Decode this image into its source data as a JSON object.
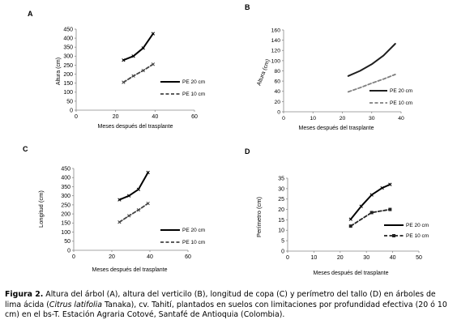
{
  "chart_data": [
    {
      "type": "line",
      "panel_label": "A",
      "xlabel": "Meses después del trasplante",
      "ylabel": "Altura (cm)",
      "xlim": [
        0,
        60
      ],
      "xticks": [
        0,
        20,
        40,
        60
      ],
      "ylim": [
        0,
        450
      ],
      "yticks": [
        0,
        50,
        100,
        150,
        200,
        250,
        300,
        350,
        400,
        450
      ],
      "legend_position": "right",
      "series": [
        {
          "name": "PE 20 cm",
          "color": "#000000",
          "style": "solid",
          "marker": "x",
          "x": [
            24,
            29,
            34,
            39
          ],
          "y": [
            278,
            300,
            345,
            425
          ]
        },
        {
          "name": "PE 10 cm",
          "color": "#444444",
          "style": "dashed",
          "marker": "x",
          "x": [
            24,
            29,
            34,
            39
          ],
          "y": [
            155,
            190,
            220,
            255
          ]
        }
      ]
    },
    {
      "type": "line",
      "panel_label": "B",
      "xlabel": "Meses después del trasplante",
      "ylabel": "Altura (cm)",
      "xlim": [
        0,
        40
      ],
      "xticks": [
        0,
        10,
        20,
        30,
        40
      ],
      "ylim": [
        0,
        160
      ],
      "yticks": [
        0,
        20,
        40,
        60,
        80,
        100,
        120,
        140,
        160
      ],
      "legend_position": "right",
      "series": [
        {
          "name": "PE 20 cm",
          "color": "#1f1f1f",
          "style": "solid",
          "marker": "none",
          "x": [
            22,
            26,
            30,
            34,
            38
          ],
          "y": [
            70,
            80,
            93,
            110,
            133
          ]
        },
        {
          "name": "PE 10 cm",
          "color": "#7f7f7f",
          "style": "dashed",
          "marker": "none",
          "x": [
            22,
            26,
            30,
            34,
            38
          ],
          "y": [
            39,
            47,
            56,
            64,
            73
          ]
        }
      ]
    },
    {
      "type": "line",
      "panel_label": "C",
      "xlabel": "Meses después del trasplante",
      "ylabel": "Longitud (cm)",
      "xlim": [
        0,
        60
      ],
      "xticks": [
        0,
        20,
        40,
        60
      ],
      "ylim": [
        0,
        450
      ],
      "yticks": [
        0,
        50,
        100,
        150,
        200,
        250,
        300,
        350,
        400,
        450
      ],
      "legend_position": "right",
      "series": [
        {
          "name": "PE 20 cm",
          "color": "#000000",
          "style": "solid",
          "marker": "x",
          "x": [
            24,
            29,
            34,
            39
          ],
          "y": [
            278,
            300,
            335,
            428
          ]
        },
        {
          "name": "PE 10 cm",
          "color": "#444444",
          "style": "dashed",
          "marker": "x",
          "x": [
            24,
            29,
            34,
            39
          ],
          "y": [
            155,
            190,
            222,
            258
          ]
        }
      ]
    },
    {
      "type": "line",
      "panel_label": "D",
      "xlabel": "Meses después del trasplante",
      "ylabel": "Perímetro (cm)",
      "xlim": [
        0,
        50
      ],
      "xticks": [
        0,
        10,
        20,
        30,
        40,
        50
      ],
      "ylim": [
        0,
        35
      ],
      "yticks": [
        0,
        5,
        10,
        15,
        20,
        25,
        30,
        35
      ],
      "legend_position": "right",
      "series": [
        {
          "name": "PE 20 cm",
          "color": "#000000",
          "style": "solid",
          "marker": "x",
          "x": [
            24,
            28,
            32,
            36,
            39
          ],
          "y": [
            15.3,
            21.5,
            27.0,
            30.3,
            32.0
          ]
        },
        {
          "name": "PE 10 cm",
          "color": "#222222",
          "style": "dashed",
          "marker": "square",
          "x": [
            24,
            32,
            39
          ],
          "y": [
            12.0,
            18.5,
            20.0
          ]
        }
      ]
    }
  ],
  "caption": {
    "lead": "Figura 2.",
    "part1": " Altura del árbol (A), altura del verticilo (B), longitud de copa (C) y perímetro del tallo (D) en árboles de lima ácida (",
    "species": "Citrus latifolia",
    "part2": " Tanaka), cv. Tahití, plantados en suelos con limitaciones por profundidad efectiva (20 ó 10 cm) en el bs-T. Estación Agraria Cotové, Santafé de Antioquia (Colombia)."
  }
}
